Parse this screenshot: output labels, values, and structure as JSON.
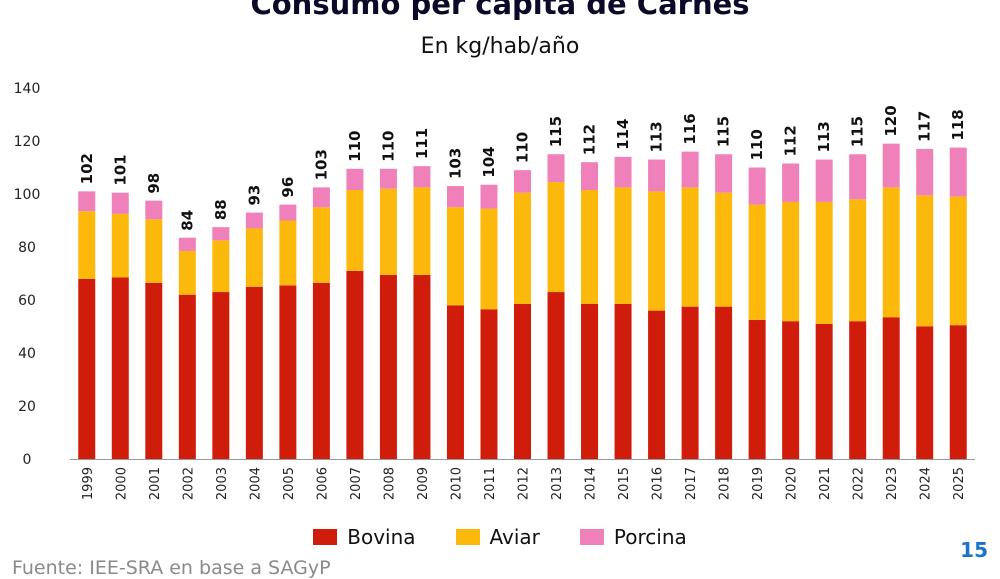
{
  "title": "Consumo per cápita de Carnes",
  "subtitle": "En kg/hab/año",
  "page_number": "15",
  "source": "Fuente: IEE-SRA en base a SAGyP",
  "colors": {
    "Bovina": "#d01c0b",
    "Aviar": "#fcb90c",
    "Porcina": "#ef80b9"
  },
  "chart_data": {
    "type": "bar",
    "stacked": true,
    "categories": [
      "1999",
      "2000",
      "2001",
      "2002",
      "2003",
      "2004",
      "2005",
      "2006",
      "2007",
      "2008",
      "2009",
      "2010",
      "2011",
      "2012",
      "2013",
      "2014",
      "2015",
      "2016",
      "2017",
      "2018",
      "2019",
      "2020",
      "2021",
      "2022",
      "2023",
      "2024",
      "2025"
    ],
    "series": [
      {
        "name": "Bovina",
        "values": [
          68,
          68.5,
          66.5,
          62,
          63,
          65,
          65.5,
          66.5,
          71,
          69.5,
          69.5,
          58,
          56.5,
          58.5,
          63,
          58.5,
          58.5,
          56,
          57.5,
          57.5,
          52.5,
          52,
          51,
          52,
          53.5,
          50,
          50.5
        ]
      },
      {
        "name": "Aviar",
        "values": [
          25.5,
          24,
          24,
          16.5,
          19.5,
          22,
          24.5,
          28.5,
          30.5,
          32.5,
          33,
          37,
          38,
          42,
          41.5,
          43,
          44,
          45,
          45,
          43,
          43.5,
          45,
          46,
          46,
          49,
          49.5,
          48.5
        ]
      },
      {
        "name": "Porcina",
        "values": [
          7.5,
          8,
          7,
          5,
          5,
          6,
          6,
          7.5,
          8,
          7.5,
          8,
          8,
          9,
          8.5,
          10.5,
          10.5,
          11.5,
          12,
          13.5,
          14.5,
          14,
          14.5,
          16,
          17,
          16.5,
          17.5,
          18.5
        ]
      }
    ],
    "totals": [
      "102",
      "101",
      "98",
      "84",
      "88",
      "93",
      "96",
      "103",
      "110",
      "110",
      "111",
      "103",
      "104",
      "110",
      "115",
      "112",
      "114",
      "113",
      "116",
      "115",
      "110",
      "112",
      "113",
      "115",
      "120",
      "117",
      "118"
    ],
    "ylim": [
      0,
      140
    ],
    "yticks": [
      "0",
      "20",
      "40",
      "60",
      "80",
      "100",
      "120",
      "140"
    ],
    "grid": false,
    "legend_position": "bottom"
  }
}
